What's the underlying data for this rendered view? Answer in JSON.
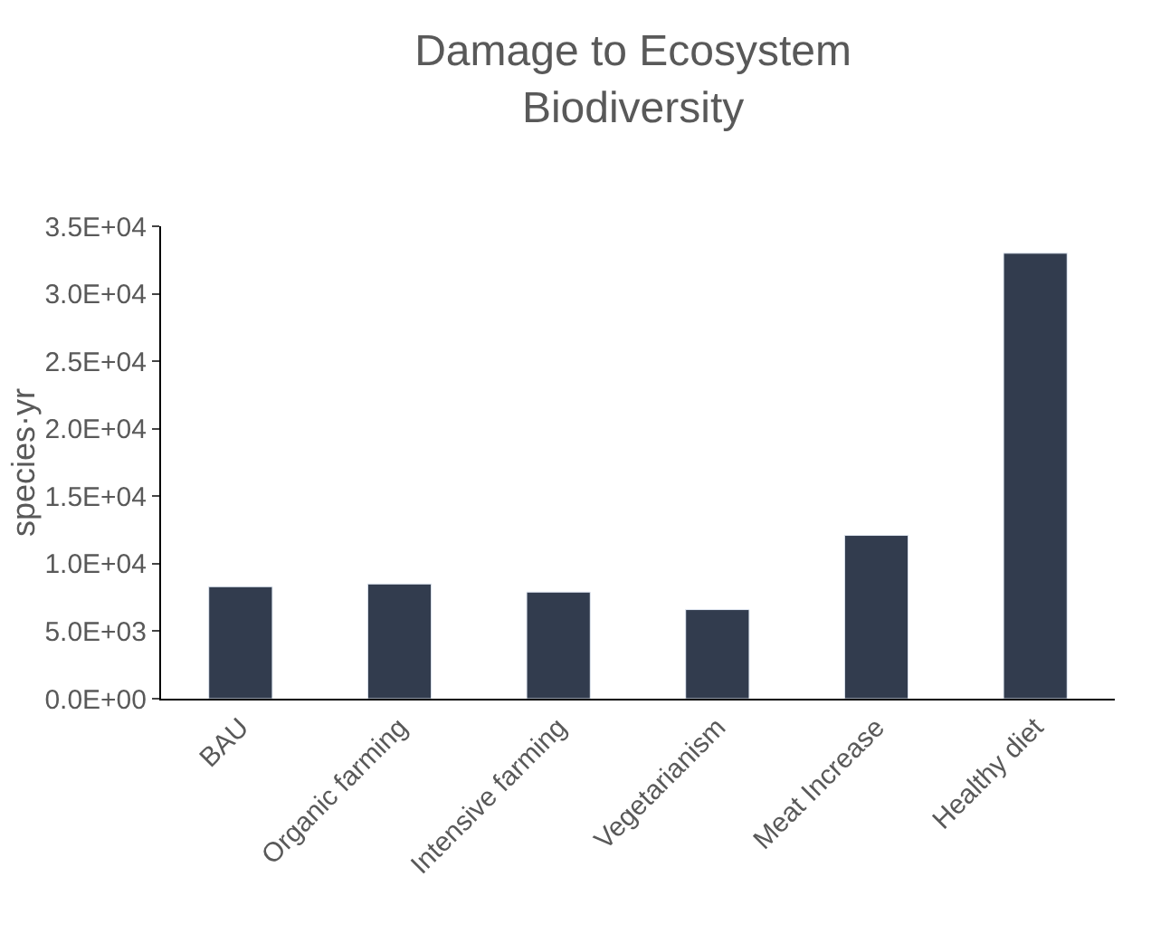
{
  "chart_data": {
    "type": "bar",
    "title": "Damage to Ecosystem Biodiversity",
    "ylabel": "species·yr",
    "categories": [
      "BAU",
      "Organic farming",
      "Intensive farming",
      "Vegetarianism",
      "Meat Increase",
      "Healthy diet"
    ],
    "values": [
      8300,
      8500,
      7900,
      6600,
      12100,
      33000
    ],
    "color": "#323c4e",
    "ylim": [
      0,
      35000
    ],
    "yticks": [
      {
        "value": 0,
        "label": "0.0E+00"
      },
      {
        "value": 5000,
        "label": "5.0E+03"
      },
      {
        "value": 10000,
        "label": "1.0E+04"
      },
      {
        "value": 15000,
        "label": "1.5E+04"
      },
      {
        "value": 20000,
        "label": "2.0E+04"
      },
      {
        "value": 25000,
        "label": "2.5E+04"
      },
      {
        "value": 30000,
        "label": "3.0E+04"
      },
      {
        "value": 35000,
        "label": "3.5E+04"
      }
    ],
    "legend": false
  }
}
